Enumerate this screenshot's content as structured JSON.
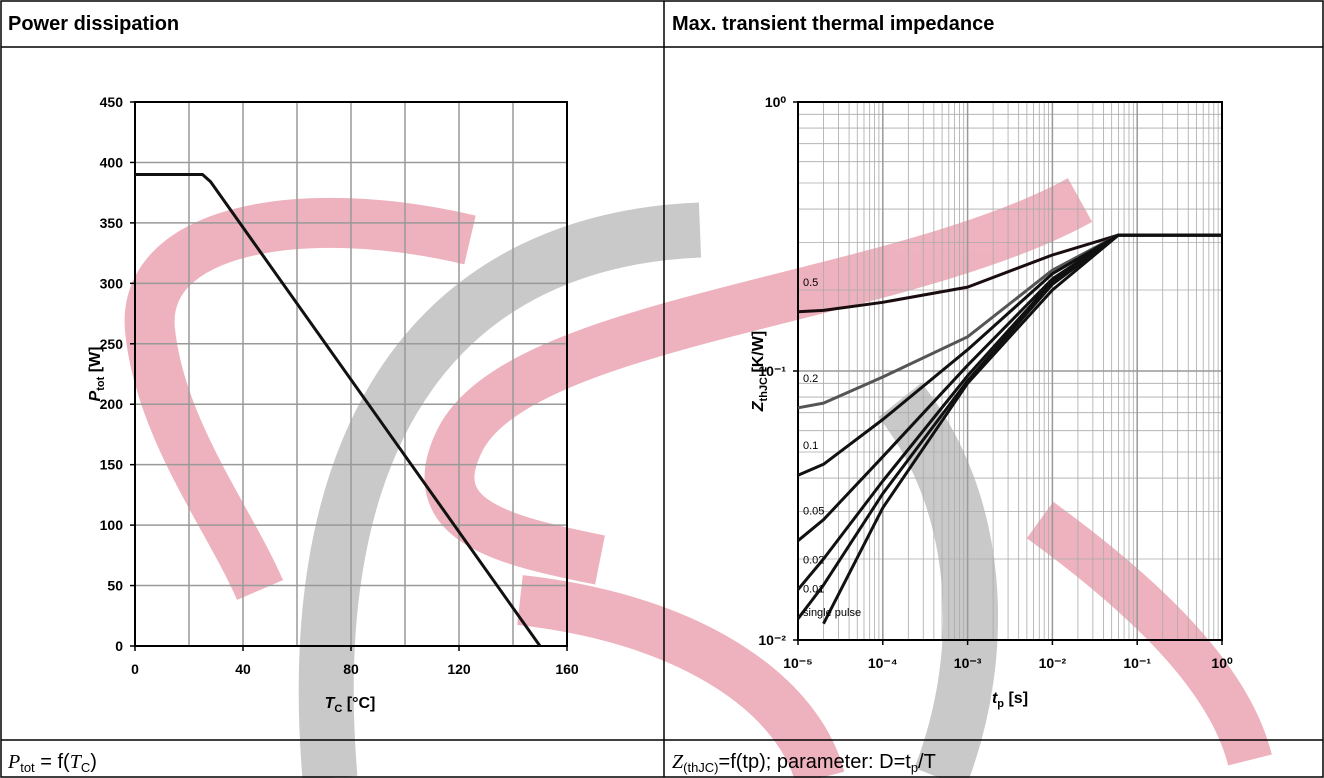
{
  "header": {
    "left": "Power dissipation",
    "right": "Max. transient thermal impedance"
  },
  "footer": {
    "left": [
      "P",
      "tot",
      " = f(",
      "T",
      "C",
      ")"
    ],
    "right": [
      "Z",
      "(thJC)",
      "=f(tp); parameter: D=t",
      "p",
      "/T"
    ]
  },
  "chart_data": [
    {
      "type": "line",
      "xlabel": [
        "T",
        "C",
        " [°C]"
      ],
      "ylabel": [
        "P",
        "tot",
        " [W]"
      ],
      "x": [
        0,
        25,
        28,
        150
      ],
      "series": [
        {
          "color": "#111111",
          "values": [
            390,
            390,
            384,
            0
          ]
        }
      ],
      "xlim": [
        0,
        160
      ],
      "xticks": [
        0,
        40,
        80,
        120,
        160
      ],
      "xgrid": [
        20,
        60,
        100,
        140
      ],
      "ylim": [
        0,
        450
      ],
      "yticks": [
        0,
        50,
        100,
        150,
        200,
        250,
        300,
        350,
        400,
        450
      ],
      "grid": true
    },
    {
      "type": "line",
      "xlabel": [
        "t",
        "p",
        " [s]"
      ],
      "ylabel": [
        "Z",
        "thJC",
        " [K/W]"
      ],
      "xlog": true,
      "ylog": true,
      "minor_grid": true,
      "x": [
        1e-05,
        2e-05,
        0.0001,
        0.001,
        0.01,
        0.06,
        1
      ],
      "series": [
        {
          "name": "0.5",
          "color": "#1a0d0f",
          "values": [
            0.166,
            0.168,
            0.18,
            0.205,
            0.27,
            0.32,
            0.32
          ]
        },
        {
          "name": "0.2",
          "color": "#555555",
          "values": [
            0.073,
            0.076,
            0.095,
            0.134,
            0.237,
            0.32,
            0.32
          ]
        },
        {
          "name": "0.1",
          "color": "#111111",
          "values": [
            0.041,
            0.045,
            0.066,
            0.12,
            0.23,
            0.32,
            0.32
          ]
        },
        {
          "name": "0.05",
          "color": "#111111",
          "values": [
            0.0234,
            0.028,
            0.048,
            0.105,
            0.22,
            0.32,
            0.32
          ]
        },
        {
          "name": "0.02",
          "color": "#111111",
          "values": [
            0.0154,
            0.02,
            0.039,
            0.096,
            0.215,
            0.32,
            0.32
          ]
        },
        {
          "name": "0.01",
          "color": "#111111",
          "values": [
            0.012,
            0.016,
            0.035,
            0.092,
            0.21,
            0.32,
            0.32
          ]
        },
        {
          "name": "single pulse",
          "color": "#111111",
          "values": [
            null,
            0.0115,
            0.031,
            0.09,
            0.2,
            0.32,
            0.32
          ]
        }
      ],
      "xlim": [
        1e-05,
        1
      ],
      "xticks": [
        {
          "value": 1e-05,
          "label": "10⁻⁵"
        },
        {
          "value": 0.0001,
          "label": "10⁻⁴"
        },
        {
          "value": 0.001,
          "label": "10⁻³"
        },
        {
          "value": 0.01,
          "label": "10⁻²"
        },
        {
          "value": 0.1,
          "label": "10⁻¹"
        },
        {
          "value": 1,
          "label": "10⁰"
        }
      ],
      "ylim": [
        0.01,
        1
      ],
      "yticks": [
        {
          "value": 0.01,
          "label": "10⁻²"
        },
        {
          "value": 0.1,
          "label": "10⁻¹"
        },
        {
          "value": 1,
          "label": "10⁰"
        }
      ],
      "grid": true
    }
  ]
}
